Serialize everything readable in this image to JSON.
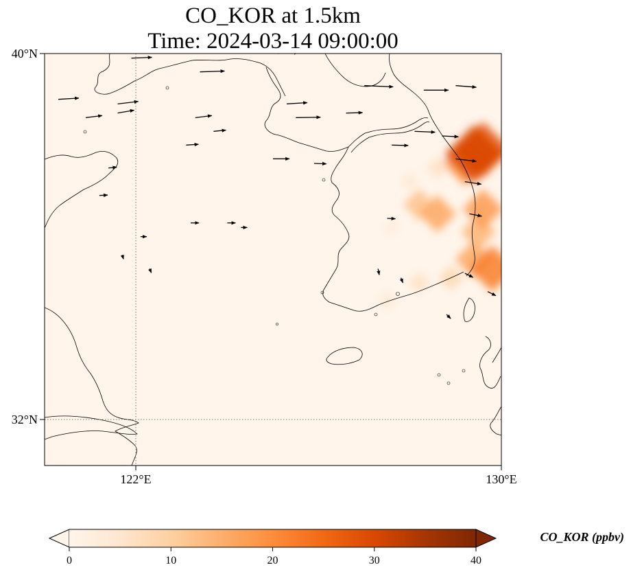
{
  "title": {
    "line1": "CO_KOR at 1.5km",
    "line2": "Time: 2024-03-14 09:00:00"
  },
  "map": {
    "lon_range": [
      120,
      130
    ],
    "lat_range": [
      31,
      40
    ],
    "lat_ticks": [
      {
        "value": 40,
        "label": "40°N"
      },
      {
        "value": 32,
        "label": "32°N"
      }
    ],
    "lon_ticks": [
      {
        "value": 122,
        "label": "122°E"
      },
      {
        "value": 130,
        "label": "130°E"
      }
    ],
    "gridlines": "dotted at 122°E and 32°N",
    "background_color": "#fff5eb",
    "coastline_color": "#000000"
  },
  "colorbar": {
    "label": "CO_KOR (ppbv)",
    "min": 0,
    "max": 40,
    "ticks": [
      "0",
      "10",
      "20",
      "30",
      "40"
    ],
    "colormap": [
      "#fff5eb",
      "#fee6ce",
      "#fdd0a2",
      "#fdae6b",
      "#fd8d3c",
      "#f16913",
      "#d94801",
      "#a63603",
      "#7f2704"
    ],
    "extend": "both"
  },
  "chart_data": {
    "type": "heatmap",
    "variable": "CO_KOR",
    "units": "ppbv",
    "level": "1.5km",
    "time": "2024-03-14 09:00:00",
    "plumes": [
      {
        "lon": 129.4,
        "lat": 37.8,
        "value": 30
      },
      {
        "lon": 129.6,
        "lat": 37.9,
        "value": 28
      },
      {
        "lon": 129.2,
        "lat": 37.6,
        "value": 20
      },
      {
        "lon": 128.6,
        "lat": 36.5,
        "value": 16
      },
      {
        "lon": 128.2,
        "lat": 36.7,
        "value": 12
      },
      {
        "lon": 129.6,
        "lat": 36.6,
        "value": 18
      },
      {
        "lon": 129.5,
        "lat": 36.1,
        "value": 14
      },
      {
        "lon": 129.8,
        "lat": 35.3,
        "value": 22
      },
      {
        "lon": 129.4,
        "lat": 35.5,
        "value": 16
      },
      {
        "lon": 128.9,
        "lat": 35.1,
        "value": 8
      },
      {
        "lon": 128.2,
        "lat": 35.0,
        "value": 6
      },
      {
        "lon": 127.5,
        "lat": 34.6,
        "value": 4
      },
      {
        "lon": 128.6,
        "lat": 37.5,
        "value": 6
      },
      {
        "lon": 128.0,
        "lat": 37.2,
        "value": 4
      },
      {
        "lon": 127.6,
        "lat": 36.2,
        "value": 3
      }
    ],
    "wind_vectors": [
      {
        "lon": 120.3,
        "lat": 39.0,
        "u": 5,
        "v": 0.3
      },
      {
        "lon": 120.9,
        "lat": 38.6,
        "u": 4,
        "v": 0.5
      },
      {
        "lon": 121.9,
        "lat": 39.9,
        "u": 5,
        "v": 0.2
      },
      {
        "lon": 121.6,
        "lat": 38.9,
        "u": 5,
        "v": 0.6
      },
      {
        "lon": 121.6,
        "lat": 38.7,
        "u": 4,
        "v": 0.7
      },
      {
        "lon": 123.4,
        "lat": 39.6,
        "u": 6,
        "v": 0.2
      },
      {
        "lon": 123.3,
        "lat": 38.6,
        "u": 4,
        "v": 0.5
      },
      {
        "lon": 123.7,
        "lat": 38.3,
        "u": 3,
        "v": 0.3
      },
      {
        "lon": 123.1,
        "lat": 38.0,
        "u": 3,
        "v": 0.2
      },
      {
        "lon": 125.3,
        "lat": 38.9,
        "u": 5,
        "v": 0.3
      },
      {
        "lon": 125.5,
        "lat": 38.6,
        "u": 6,
        "v": 0.1
      },
      {
        "lon": 125.1,
        "lat": 40.0,
        "u": 5,
        "v": 0.2
      },
      {
        "lon": 126.6,
        "lat": 38.7,
        "u": 4,
        "v": 0.1
      },
      {
        "lon": 127.0,
        "lat": 39.3,
        "u": 7,
        "v": -0.3
      },
      {
        "lon": 128.3,
        "lat": 39.2,
        "u": 6,
        "v": 0.0
      },
      {
        "lon": 129.0,
        "lat": 39.3,
        "u": 5,
        "v": -0.4
      },
      {
        "lon": 128.1,
        "lat": 38.3,
        "u": 5,
        "v": -0.2
      },
      {
        "lon": 127.6,
        "lat": 38.0,
        "u": 4,
        "v": -0.1
      },
      {
        "lon": 128.7,
        "lat": 38.2,
        "u": 4,
        "v": -0.2
      },
      {
        "lon": 125.0,
        "lat": 37.7,
        "u": 4,
        "v": 0.0
      },
      {
        "lon": 125.9,
        "lat": 37.6,
        "u": 3,
        "v": -0.1
      },
      {
        "lon": 129.0,
        "lat": 37.7,
        "u": 5,
        "v": -0.6
      },
      {
        "lon": 129.2,
        "lat": 37.2,
        "u": 4,
        "v": -0.6
      },
      {
        "lon": 129.3,
        "lat": 36.5,
        "u": 3,
        "v": -0.6
      },
      {
        "lon": 127.5,
        "lat": 36.4,
        "u": 2,
        "v": -0.1
      },
      {
        "lon": 127.3,
        "lat": 35.3,
        "u": 0.3,
        "v": -1.5
      },
      {
        "lon": 127.8,
        "lat": 35.1,
        "u": 0.5,
        "v": -1.2
      },
      {
        "lon": 129.2,
        "lat": 35.2,
        "u": 2,
        "v": -1.0
      },
      {
        "lon": 129.7,
        "lat": 34.8,
        "u": 2,
        "v": -1.0
      },
      {
        "lon": 128.8,
        "lat": 34.3,
        "u": 1,
        "v": -1.0
      },
      {
        "lon": 123.2,
        "lat": 36.3,
        "u": 2,
        "v": 0.0
      },
      {
        "lon": 124.0,
        "lat": 36.3,
        "u": 2,
        "v": 0.0
      },
      {
        "lon": 121.4,
        "lat": 37.5,
        "u": 2,
        "v": 0.2
      },
      {
        "lon": 121.2,
        "lat": 36.9,
        "u": 2,
        "v": 0.1
      },
      {
        "lon": 121.7,
        "lat": 35.6,
        "u": 0.3,
        "v": -1.0
      },
      {
        "lon": 122.3,
        "lat": 35.3,
        "u": 0.4,
        "v": -1.0
      },
      {
        "lon": 124.3,
        "lat": 36.2,
        "u": 1.5,
        "v": 0.0
      },
      {
        "lon": 122.1,
        "lat": 36.0,
        "u": 1.5,
        "v": 0.0
      }
    ]
  }
}
